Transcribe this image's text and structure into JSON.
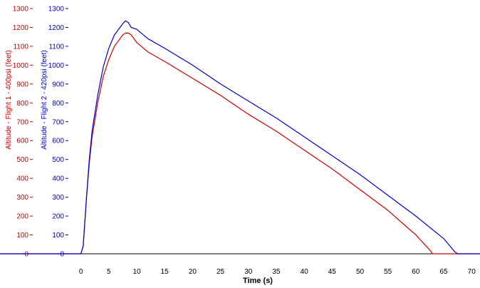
{
  "chart_data": {
    "type": "line",
    "xlabel": "Time (s)",
    "xlim": [
      -14.5,
      71.5
    ],
    "x_ticks": [
      0,
      5,
      10,
      15,
      20,
      25,
      30,
      35,
      40,
      45,
      50,
      55,
      60,
      65,
      70
    ],
    "y_axes": [
      {
        "label": "Altitude - Flight 1 - 400psi (feet)",
        "color": "#cc0000",
        "ylim": [
          0,
          1300
        ],
        "ticks": [
          0,
          100,
          200,
          300,
          400,
          500,
          600,
          700,
          800,
          900,
          1000,
          1100,
          1200,
          1300
        ]
      },
      {
        "label": "Altitude - Flight 2 - 420psi (feet)",
        "color": "#0000cc",
        "ylim": [
          0,
          1300
        ],
        "ticks": [
          0,
          100,
          200,
          300,
          400,
          500,
          600,
          700,
          800,
          900,
          1000,
          1100,
          1200,
          1300
        ]
      }
    ],
    "series": [
      {
        "color": "#cc0000",
        "x": [
          -14.5,
          0,
          0.4,
          1,
          1.5,
          2,
          3,
          4,
          5,
          6,
          7,
          7.5,
          8,
          8.5,
          9,
          10,
          12,
          15,
          20,
          25,
          30,
          35,
          40,
          45,
          50,
          55,
          60,
          62.5,
          63,
          71.5
        ],
        "y": [
          0,
          0,
          40,
          300,
          480,
          620,
          800,
          940,
          1030,
          1100,
          1140,
          1160,
          1170,
          1170,
          1160,
          1120,
          1070,
          1020,
          930,
          840,
          740,
          650,
          550,
          450,
          340,
          230,
          100,
          20,
          0,
          0
        ]
      },
      {
        "color": "#0000cc",
        "x": [
          -14.5,
          0,
          0.4,
          1,
          1.5,
          2,
          3,
          4,
          5,
          6,
          7,
          7.5,
          8,
          8.5,
          9,
          10,
          12,
          15,
          20,
          25,
          30,
          35,
          40,
          45,
          50,
          55,
          60,
          65,
          67,
          67.5,
          71.5
        ],
        "y": [
          0,
          0,
          40,
          300,
          500,
          650,
          840,
          990,
          1090,
          1160,
          1200,
          1220,
          1235,
          1225,
          1200,
          1190,
          1140,
          1090,
          1000,
          900,
          810,
          720,
          620,
          520,
          420,
          310,
          200,
          80,
          10,
          0,
          0
        ]
      }
    ]
  }
}
